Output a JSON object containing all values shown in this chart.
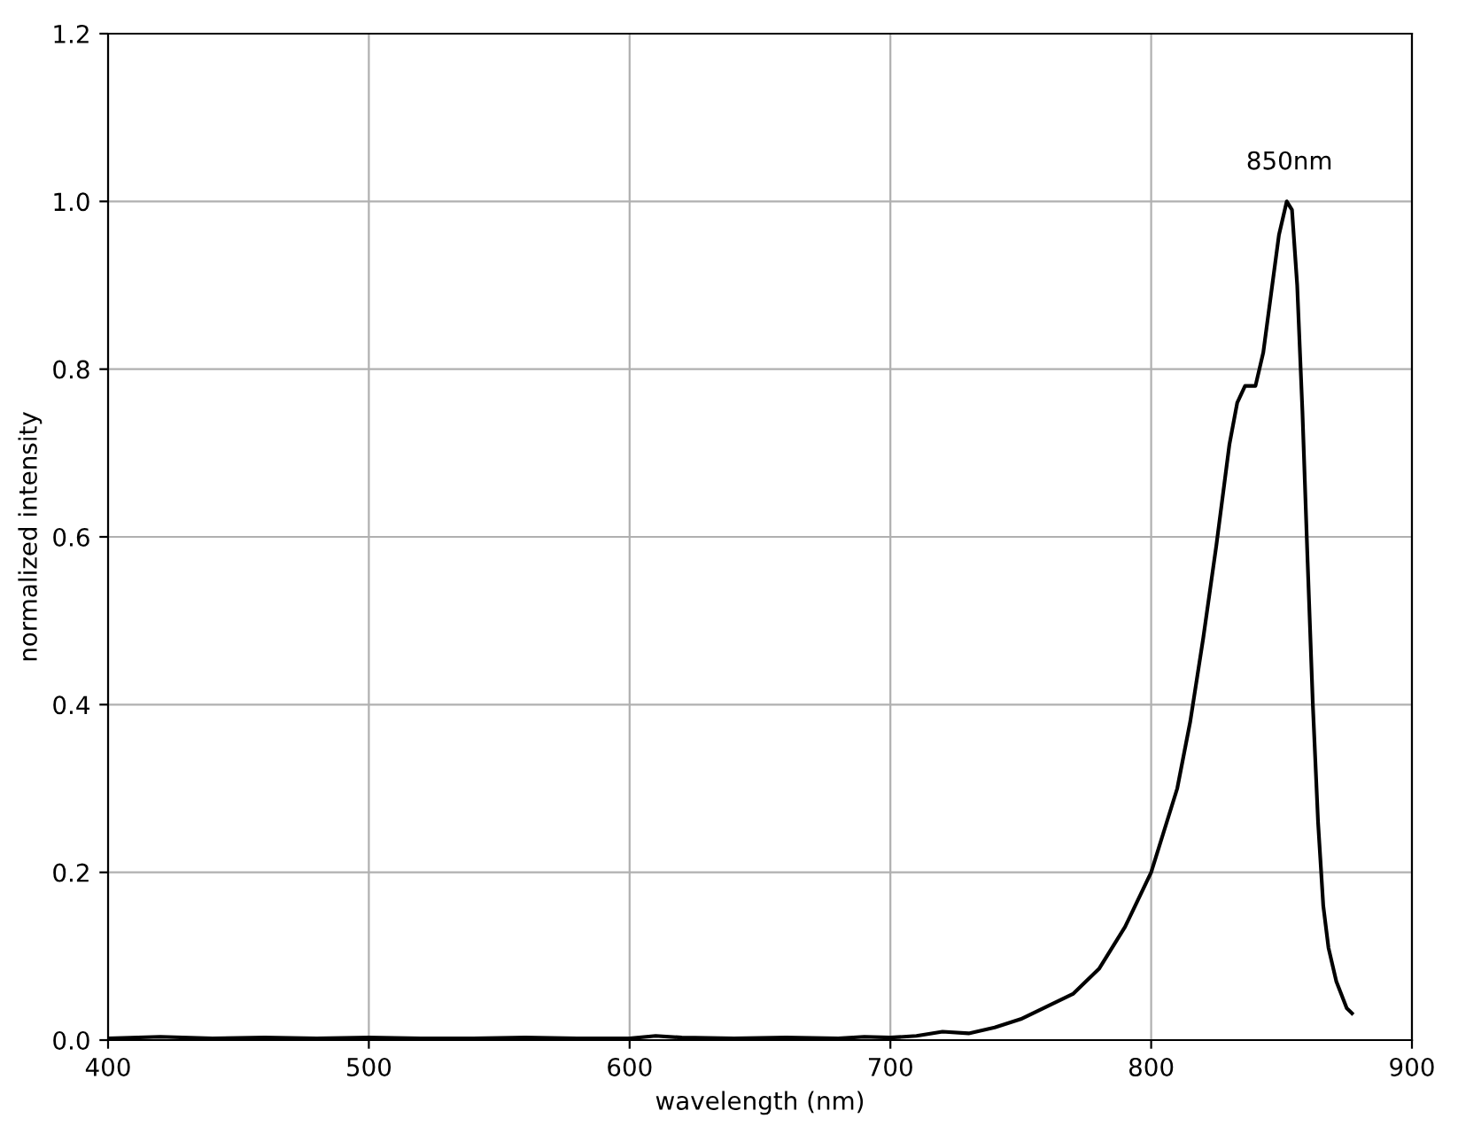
{
  "chart_data": {
    "type": "line",
    "xlabel": "wavelength (nm)",
    "ylabel": "normalized intensity",
    "annotations": [
      "850nm"
    ],
    "series": [
      {
        "color": "#000000",
        "x": [
          400,
          420,
          440,
          460,
          480,
          500,
          520,
          540,
          560,
          580,
          600,
          610,
          620,
          640,
          660,
          680,
          690,
          700,
          710,
          720,
          730,
          740,
          750,
          760,
          770,
          780,
          790,
          800,
          810,
          815,
          820,
          825,
          830,
          833,
          836,
          840,
          843,
          846,
          849,
          852,
          854,
          856,
          858,
          860,
          862,
          864,
          866,
          868,
          871,
          875,
          877
        ],
        "values": [
          0.002,
          0.004,
          0.002,
          0.003,
          0.002,
          0.003,
          0.002,
          0.002,
          0.003,
          0.002,
          0.002,
          0.005,
          0.003,
          0.002,
          0.003,
          0.002,
          0.004,
          0.003,
          0.005,
          0.01,
          0.008,
          0.015,
          0.025,
          0.04,
          0.055,
          0.085,
          0.135,
          0.2,
          0.3,
          0.38,
          0.48,
          0.59,
          0.71,
          0.76,
          0.78,
          0.78,
          0.82,
          0.89,
          0.96,
          1.0,
          0.99,
          0.9,
          0.75,
          0.57,
          0.4,
          0.26,
          0.16,
          0.11,
          0.07,
          0.038,
          0.032
        ]
      }
    ],
    "xlim": [
      400,
      900
    ],
    "xticks": [
      400,
      500,
      600,
      700,
      800,
      900
    ],
    "ylim": [
      0,
      1.2
    ],
    "yticks": [
      {
        "value": 0,
        "label": "0.0"
      },
      0.2,
      0.4,
      0.6,
      0.8,
      {
        "value": 1,
        "label": "1.0"
      },
      1.2
    ],
    "grid": true,
    "marker": "none",
    "line_style": "solid"
  }
}
